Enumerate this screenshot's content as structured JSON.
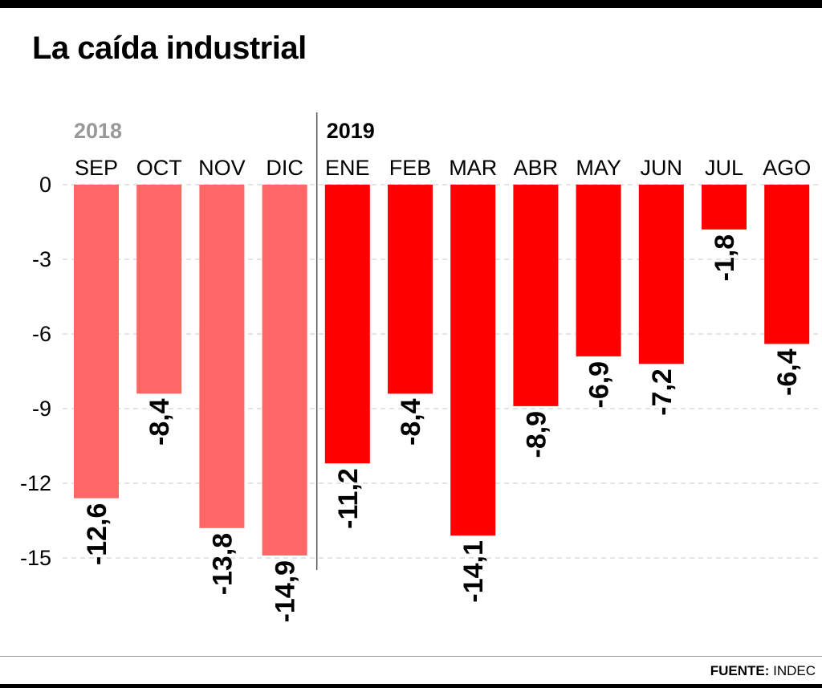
{
  "title": "La caída industrial",
  "source": {
    "label": "FUENTE:",
    "value": "INDEC"
  },
  "colors": {
    "year2018": "#ff6666",
    "year2019": "#ff0000",
    "grid": "#c8c8c8",
    "text": "#000000",
    "year2018_label": "#999999"
  },
  "chart_data": {
    "type": "bar",
    "title": "La caída industrial",
    "xlabel": "",
    "ylabel": "",
    "ylim": [
      -15,
      0
    ],
    "yticks": [
      "0",
      "-3",
      "-6",
      "-9",
      "-12",
      "-15"
    ],
    "grid": true,
    "groups": [
      {
        "label": "2018",
        "categories": [
          "SEP",
          "OCT",
          "NOV",
          "DIC"
        ]
      },
      {
        "label": "2019",
        "categories": [
          "ENE",
          "FEB",
          "MAR",
          "ABR",
          "MAY",
          "JUN",
          "JUL",
          "AGO"
        ]
      }
    ],
    "categories": [
      "SEP",
      "OCT",
      "NOV",
      "DIC",
      "ENE",
      "FEB",
      "MAR",
      "ABR",
      "MAY",
      "JUN",
      "JUL",
      "AGO"
    ],
    "values": [
      -12.6,
      -8.4,
      -13.8,
      -14.9,
      -11.2,
      -8.4,
      -14.1,
      -8.9,
      -6.9,
      -7.2,
      -1.8,
      -6.4
    ],
    "value_labels": [
      "-12,6",
      "-8,4",
      "-13,8",
      "-14,9",
      "-11,2",
      "-8,4",
      "-14,1",
      "-8,9",
      "-6,9",
      "-7,2",
      "-1,8",
      "-6,4"
    ]
  }
}
